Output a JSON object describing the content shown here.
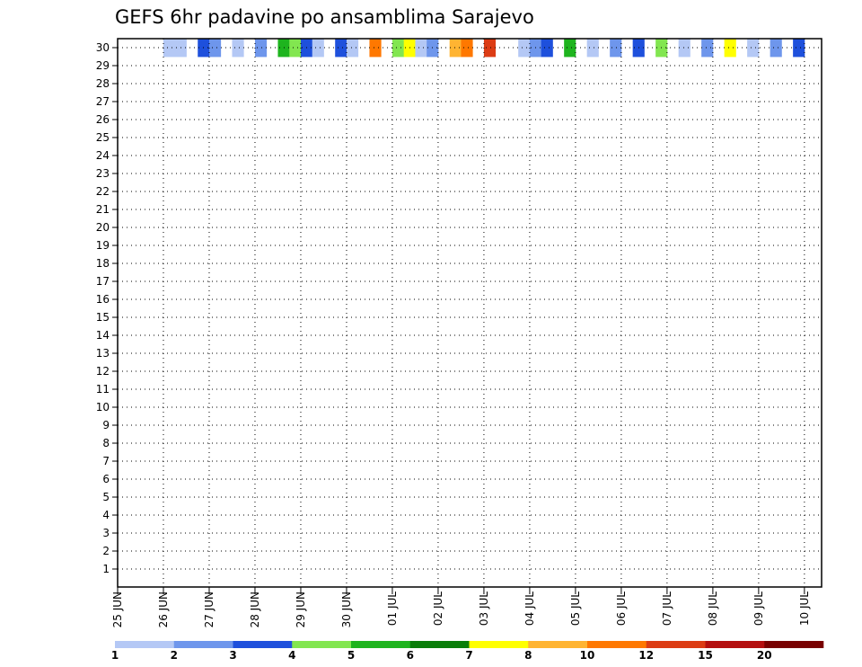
{
  "chart_data": {
    "type": "heatmap",
    "title": "GEFS 6hr padavine po ansamblima Sarajevo",
    "xlabel": "",
    "ylabel": "",
    "grid": true,
    "x_ticks": [
      "25 JUN",
      "26 JUN",
      "27 JUN",
      "28 JUN",
      "29 JUN",
      "30 JUN",
      "01 JUL",
      "02 JUL",
      "03 JUL",
      "04 JUL",
      "05 JUL",
      "06 JUL",
      "07 JUL",
      "08 JUL",
      "09 JUL",
      "10 JUL"
    ],
    "x_range_steps": [
      0,
      61
    ],
    "steps_per_day": 4,
    "y_ticks": [
      1,
      2,
      3,
      4,
      5,
      6,
      7,
      8,
      9,
      10,
      11,
      12,
      13,
      14,
      15,
      16,
      17,
      18,
      19,
      20,
      21,
      22,
      23,
      24,
      25,
      26,
      27,
      28,
      29,
      30
    ],
    "y_range": [
      0,
      30
    ],
    "colorbar": {
      "labels": [
        "1",
        "2",
        "3",
        "4",
        "5",
        "6",
        "7",
        "8",
        "10",
        "12",
        "15",
        "20"
      ],
      "colors": [
        "#b4c8f5",
        "#6e96ec",
        "#1e50dc",
        "#82e650",
        "#1eb41e",
        "#0a7d0a",
        "#ffff00",
        "#ffb432",
        "#ff7800",
        "#dc3c14",
        "#b40f0f",
        "#780000"
      ]
    },
    "cells": [
      [
        4,
        30,
        0
      ],
      [
        5,
        30,
        0
      ],
      [
        7,
        30,
        2
      ],
      [
        8,
        30,
        1
      ],
      [
        10,
        30,
        0
      ],
      [
        12,
        30,
        1
      ],
      [
        14,
        30,
        4
      ],
      [
        15,
        30,
        3
      ],
      [
        16,
        30,
        2
      ],
      [
        17,
        30,
        0
      ],
      [
        19,
        30,
        2
      ],
      [
        20,
        30,
        0
      ],
      [
        22,
        30,
        8
      ],
      [
        24,
        30,
        3
      ],
      [
        25,
        30,
        6
      ],
      [
        26,
        30,
        0
      ],
      [
        27,
        30,
        1
      ],
      [
        29,
        30,
        7
      ],
      [
        30,
        30,
        8
      ],
      [
        32,
        30,
        9
      ],
      [
        35,
        30,
        0
      ],
      [
        36,
        30,
        1
      ],
      [
        37,
        30,
        2
      ],
      [
        39,
        30,
        4
      ],
      [
        41,
        30,
        0
      ],
      [
        43,
        30,
        1
      ],
      [
        45,
        30,
        2
      ],
      [
        47,
        30,
        3
      ],
      [
        49,
        30,
        0
      ],
      [
        51,
        30,
        1
      ],
      [
        53,
        30,
        6
      ],
      [
        55,
        30,
        0
      ],
      [
        57,
        30,
        1
      ],
      [
        59,
        30,
        2
      ]
    ]
  }
}
